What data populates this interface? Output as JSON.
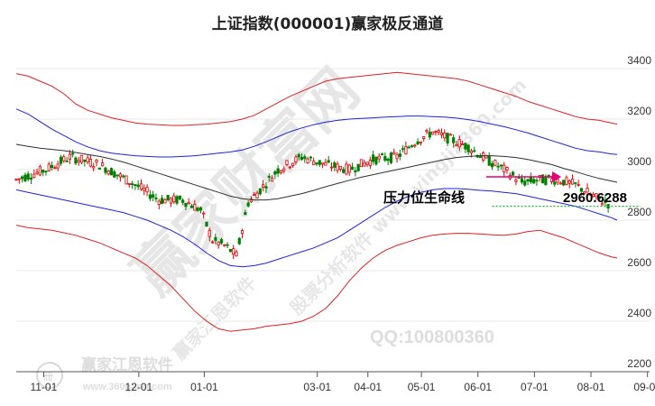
{
  "chart_data": {
    "type": "line",
    "title": "上证指数(000001)赢家极反通道",
    "xlabel": "",
    "ylabel": "",
    "ylim": [
      2200,
      3500
    ],
    "yticks": [
      2200,
      2400,
      2600,
      2800,
      3000,
      3200,
      3400
    ],
    "xticks": [
      "11-01",
      "12-01",
      "01-01",
      "03-01",
      "04-01",
      "05-01",
      "06-01",
      "07-01",
      "08-01",
      "09-01"
    ],
    "grid": true,
    "x": [
      0,
      4,
      8,
      12,
      16,
      20,
      24,
      28,
      32,
      36,
      40,
      44,
      48,
      52,
      56,
      60,
      64,
      68,
      72,
      76,
      80,
      84,
      88,
      92,
      96,
      100,
      104,
      108,
      112,
      116,
      120,
      124,
      128,
      132,
      136,
      140,
      144,
      148,
      152,
      156,
      160,
      164,
      168,
      172,
      176,
      180,
      184,
      188,
      192,
      196,
      200,
      202
    ],
    "series": [
      {
        "color": "#e02020",
        "values": [
          3380,
          3370,
          3350,
          3330,
          3300,
          3260,
          3235,
          3220,
          3205,
          3195,
          3185,
          3180,
          3178,
          3175,
          3175,
          3178,
          3180,
          3185,
          3190,
          3200,
          3215,
          3240,
          3265,
          3290,
          3310,
          3330,
          3350,
          3360,
          3365,
          3370,
          3375,
          3380,
          3385,
          3380,
          3375,
          3370,
          3365,
          3360,
          3350,
          3335,
          3320,
          3305,
          3290,
          3270,
          3255,
          3240,
          3225,
          3210,
          3200,
          3195,
          3185,
          3180
        ]
      },
      {
        "color": "#2020e0",
        "values": [
          3240,
          3220,
          3190,
          3160,
          3135,
          3110,
          3090,
          3075,
          3065,
          3060,
          3055,
          3052,
          3050,
          3050,
          3052,
          3055,
          3060,
          3065,
          3070,
          3078,
          3092,
          3110,
          3130,
          3150,
          3165,
          3178,
          3188,
          3195,
          3200,
          3203,
          3205,
          3208,
          3210,
          3212,
          3212,
          3210,
          3208,
          3204,
          3198,
          3190,
          3180,
          3170,
          3158,
          3145,
          3130,
          3115,
          3100,
          3085,
          3075,
          3070,
          3062,
          3060
        ]
      },
      {
        "color": "#303030",
        "values": [
          3100,
          3092,
          3085,
          3080,
          3075,
          3068,
          3060,
          3052,
          3042,
          3030,
          3015,
          3000,
          2985,
          2970,
          2955,
          2940,
          2925,
          2910,
          2895,
          2885,
          2880,
          2880,
          2885,
          2895,
          2905,
          2918,
          2932,
          2945,
          2958,
          2970,
          2980,
          2990,
          3000,
          3010,
          3020,
          3030,
          3040,
          3048,
          3052,
          3055,
          3055,
          3052,
          3048,
          3040,
          3030,
          3020,
          3005,
          2992,
          2978,
          2965,
          2955,
          2950
        ]
      },
      {
        "color": "#2020e0",
        "values": [
          2920,
          2910,
          2900,
          2890,
          2880,
          2870,
          2860,
          2850,
          2840,
          2830,
          2815,
          2800,
          2780,
          2760,
          2735,
          2705,
          2670,
          2640,
          2620,
          2615,
          2620,
          2630,
          2645,
          2660,
          2675,
          2690,
          2710,
          2730,
          2760,
          2790,
          2820,
          2850,
          2875,
          2895,
          2910,
          2920,
          2925,
          2925,
          2922,
          2918,
          2915,
          2910,
          2905,
          2895,
          2885,
          2875,
          2865,
          2855,
          2840,
          2825,
          2810,
          2800
        ]
      },
      {
        "color": "#e02020",
        "values": [
          2780,
          2770,
          2765,
          2760,
          2750,
          2740,
          2725,
          2710,
          2690,
          2670,
          2650,
          2620,
          2580,
          2540,
          2490,
          2440,
          2400,
          2370,
          2360,
          2365,
          2370,
          2380,
          2385,
          2390,
          2400,
          2420,
          2450,
          2500,
          2560,
          2610,
          2650,
          2680,
          2700,
          2715,
          2730,
          2740,
          2745,
          2748,
          2748,
          2745,
          2742,
          2740,
          2745,
          2755,
          2760,
          2745,
          2730,
          2710,
          2690,
          2670,
          2655,
          2650
        ]
      }
    ],
    "annotations": [
      "压力位生命线",
      "2960.6288"
    ]
  },
  "watermarks": [
    "赢家财富网",
    "股票分析软件 www.yingjia360.com",
    "赢家江恩软件",
    "QQ:100800360",
    "赢家江恩软件",
    "www.360gann.com"
  ],
  "colors": {
    "upper": "#e02020",
    "mid": "#2020e0",
    "center": "#303030",
    "up_candle": "#e00000",
    "down_candle": "#008000",
    "support": "#00a000",
    "arrow": "#e0007a"
  }
}
